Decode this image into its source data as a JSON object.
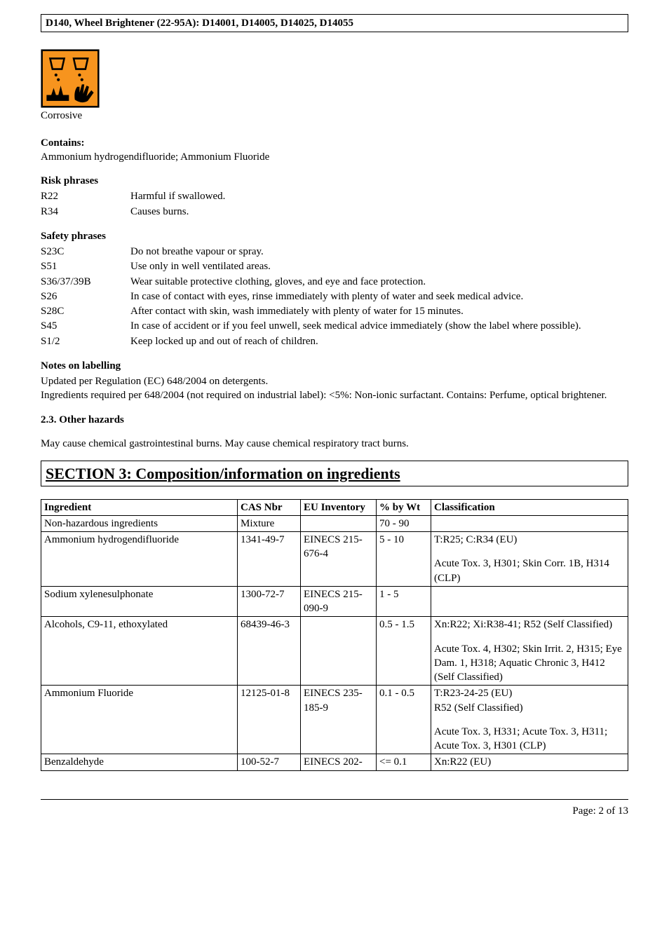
{
  "header": {
    "title": "D140,  Wheel Brightener (22-95A):  D14001, D14005, D14025, D14055"
  },
  "hazard_symbol": {
    "caption": "Corrosive"
  },
  "contains": {
    "heading": "Contains:",
    "text": "Ammonium hydrogendifluoride; Ammonium Fluoride"
  },
  "risk_phrases": {
    "heading": "Risk phrases",
    "rows": [
      {
        "code": "R22",
        "text": "Harmful if swallowed."
      },
      {
        "code": "R34",
        "text": "Causes burns."
      }
    ]
  },
  "safety_phrases": {
    "heading": "Safety phrases",
    "rows": [
      {
        "code": "S23C",
        "text": "Do not breathe vapour or spray."
      },
      {
        "code": "S51",
        "text": "Use only in well ventilated areas."
      },
      {
        "code": "S36/37/39B",
        "text": "Wear suitable protective clothing, gloves, and eye and face protection."
      },
      {
        "code": "S26",
        "text": "In case of contact with eyes, rinse immediately with plenty of water and seek medical advice."
      },
      {
        "code": "S28C",
        "text": "After contact with skin, wash immediately with plenty of water for 15 minutes."
      },
      {
        "code": "S45",
        "text": "In case of accident or if you feel unwell, seek medical advice immediately (show the label where possible)."
      },
      {
        "code": "S1/2",
        "text": "Keep locked up and out of reach of children."
      }
    ]
  },
  "labelling_notes": {
    "heading": "Notes on labelling",
    "lines": [
      "Updated per Regulation (EC) 648/2004 on detergents.",
      "Ingredients required per 648/2004 (not required on industrial label): <5%: Non-ionic surfactant. Contains: Perfume, optical brightener."
    ]
  },
  "other_hazards": {
    "heading": "2.3. Other hazards",
    "text": "May cause chemical gastrointestinal burns.  May cause chemical respiratory tract burns."
  },
  "section3": {
    "title": "SECTION 3: Composition/information on ingredients"
  },
  "ingredients_table": {
    "headers": [
      "Ingredient",
      "CAS Nbr",
      "EU Inventory",
      "% by Wt",
      "Classification"
    ],
    "rows": [
      {
        "ingredient": "Non-hazardous ingredients",
        "cas": "Mixture",
        "eu": "",
        "wt": " 70 -  90",
        "class_blocks": [
          ""
        ]
      },
      {
        "ingredient": "Ammonium hydrogendifluoride",
        "cas": "1341-49-7",
        "eu": "EINECS 215-676-4",
        "wt": " 5 -  10",
        "class_blocks": [
          "T:R25; C:R34 (EU)",
          "Acute Tox. 3, H301; Skin Corr. 1B, H314 (CLP)"
        ]
      },
      {
        "ingredient": "Sodium xylenesulphonate",
        "cas": "1300-72-7",
        "eu": "EINECS 215-090-9",
        "wt": " 1 -  5",
        "class_blocks": [
          ""
        ]
      },
      {
        "ingredient": "Alcohols, C9-11, ethoxylated",
        "cas": "68439-46-3",
        "eu": "",
        "wt": " 0.5 -  1.5",
        "class_blocks": [
          "Xn:R22; Xi:R38-41; R52 (Self Classified)",
          "Acute Tox. 4, H302; Skin Irrit. 2, H315; Eye Dam. 1, H318; Aquatic Chronic 3, H412 (Self Classified)"
        ]
      },
      {
        "ingredient": "Ammonium Fluoride",
        "cas": "12125-01-8",
        "eu": "EINECS 235-185-9",
        "wt": " 0.1 -  0.5",
        "class_blocks": [
          "T:R23-24-25 (EU)\nR52 (Self Classified)",
          "Acute Tox. 3, H331; Acute Tox. 3, H311; Acute Tox. 3, H301 (CLP)"
        ]
      },
      {
        "ingredient": "Benzaldehyde",
        "cas": "100-52-7",
        "eu": "EINECS 202-",
        "wt": " <= 0.1",
        "class_blocks": [
          "Xn:R22 (EU)"
        ]
      }
    ]
  },
  "footer": {
    "page": "Page: 2 of  13"
  }
}
